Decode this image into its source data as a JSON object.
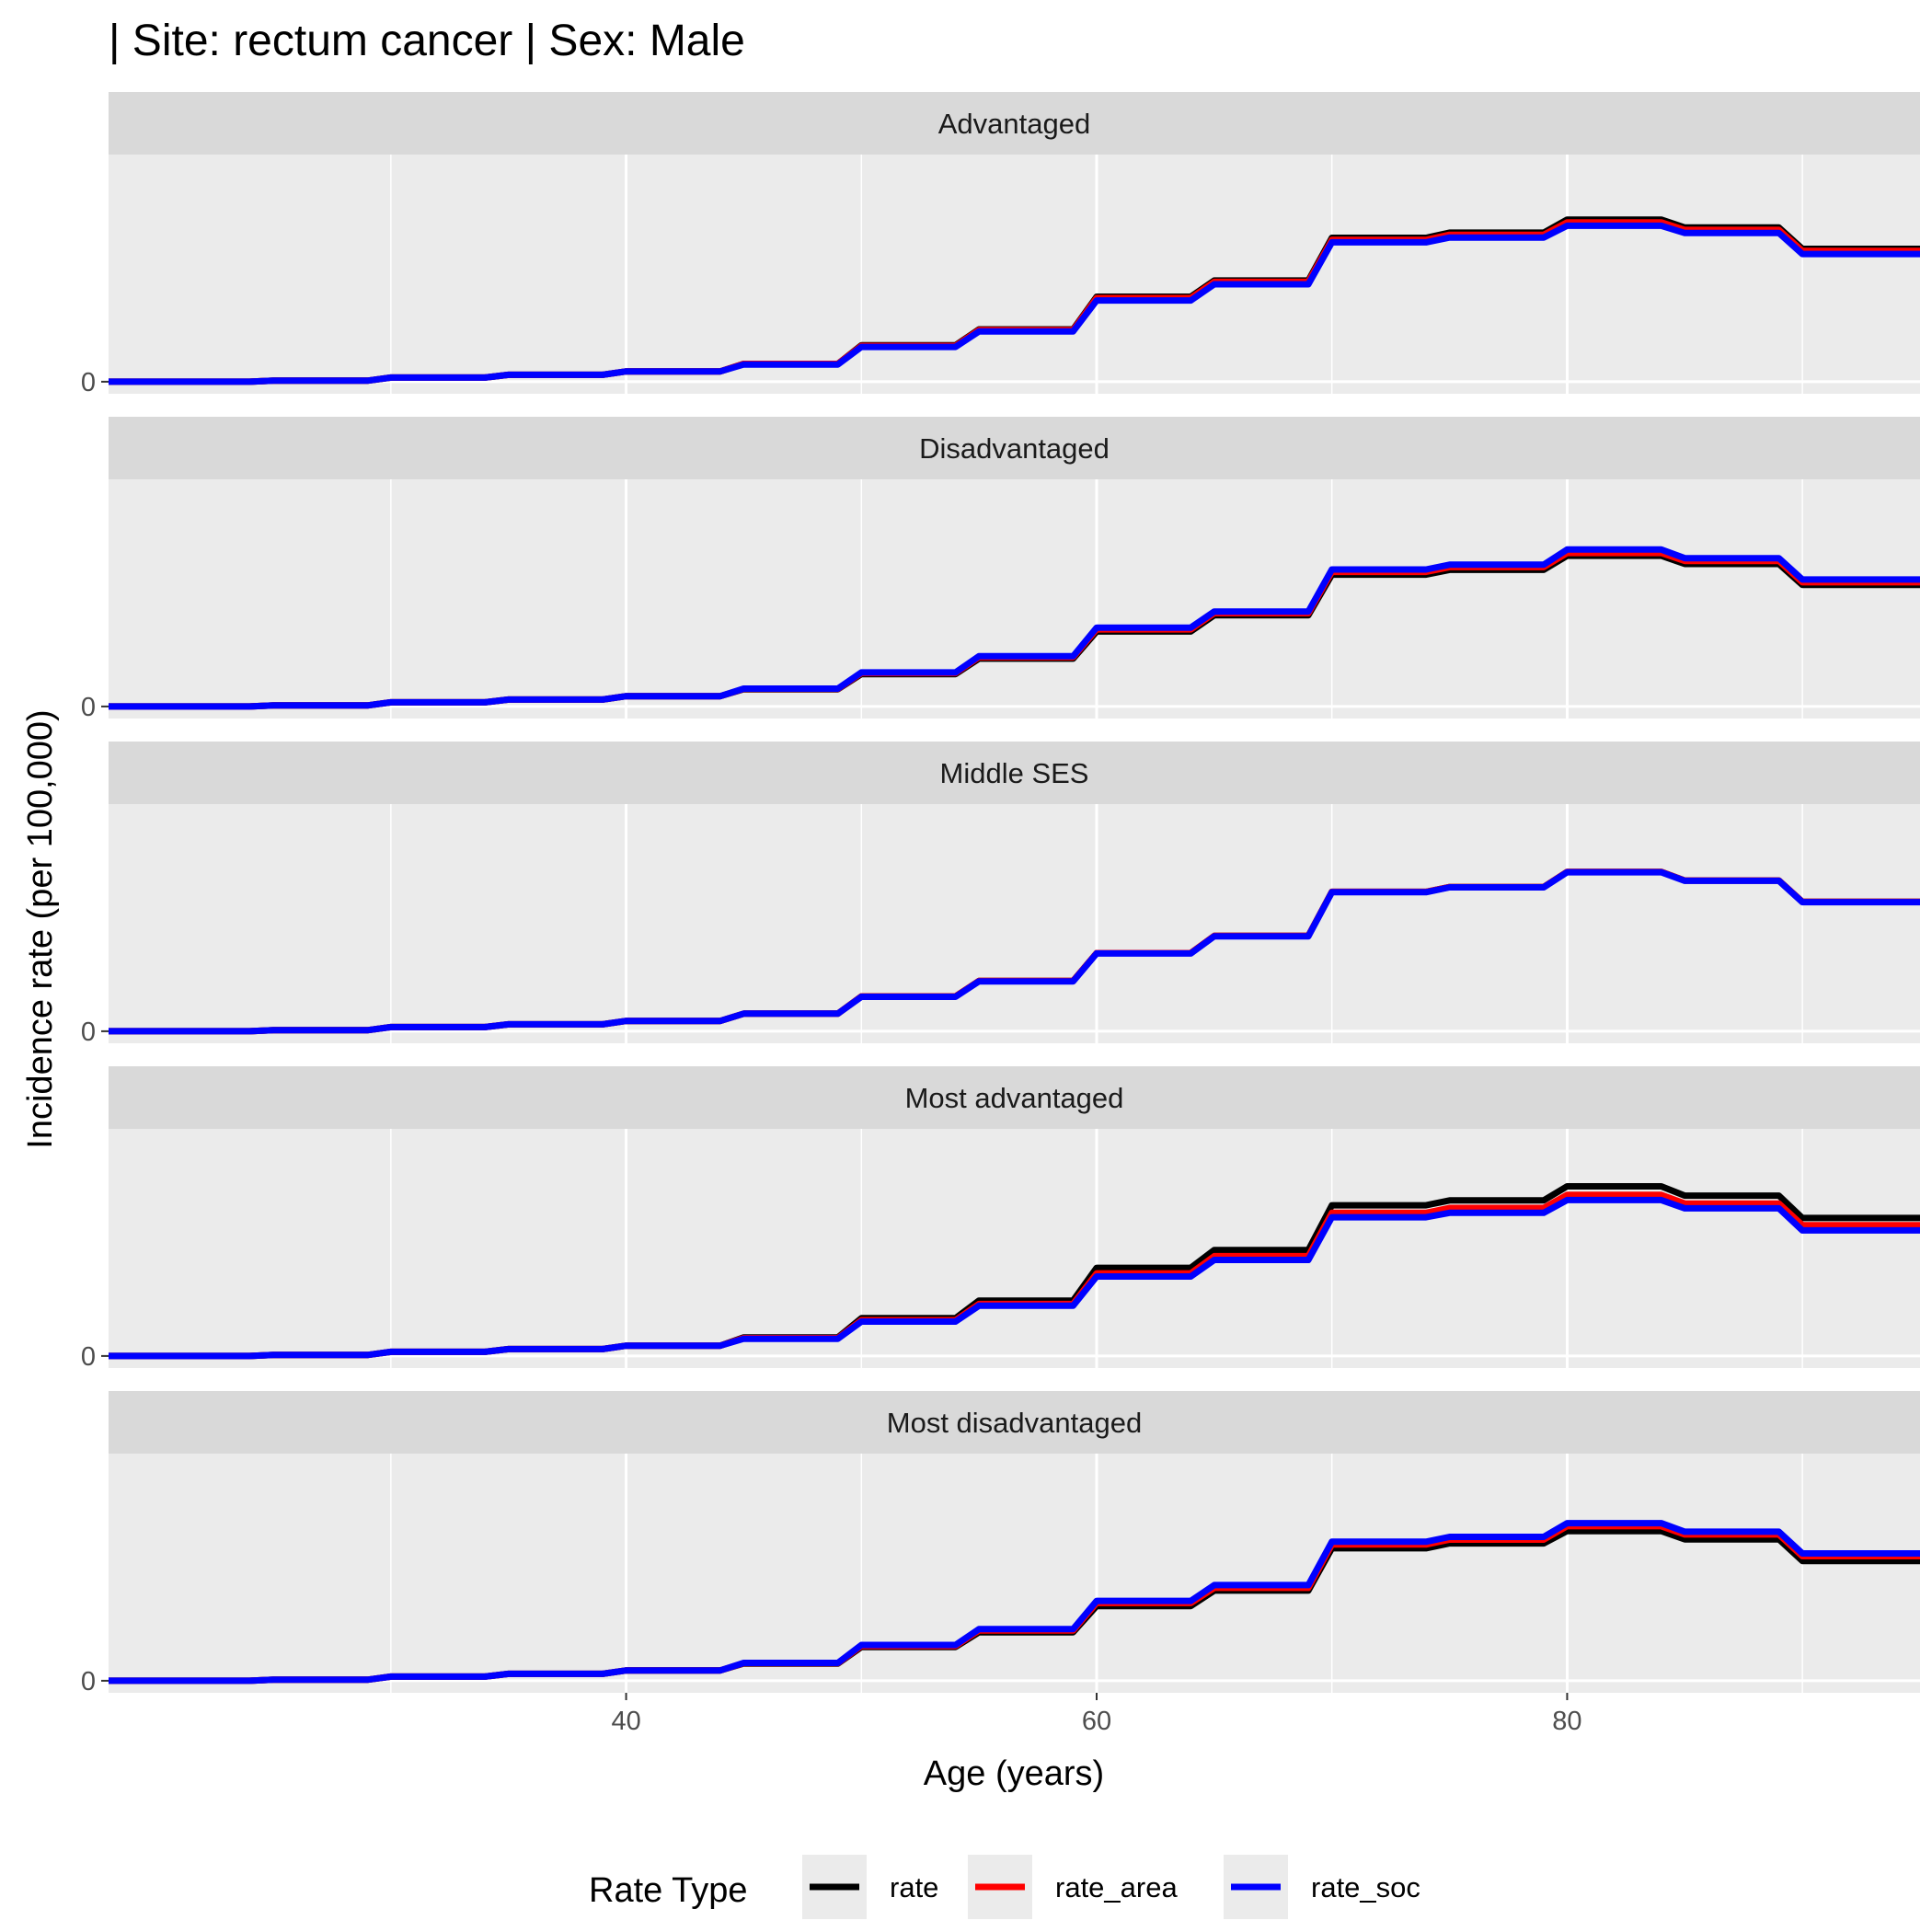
{
  "title": "| Site: rectum cancer | Sex: Male",
  "chart_data": {
    "type": "line",
    "xlabel": "Age (years)",
    "ylabel": "Incidence rate (per 100,000)",
    "xlim": [
      18,
      95
    ],
    "x_ticks": [
      40,
      60,
      80
    ],
    "x_tick_labels": [
      "40",
      "60",
      "80"
    ],
    "y_ticks": [
      0
    ],
    "y_tick_labels": [
      "0"
    ],
    "ylim": [
      -3.5,
      66
    ],
    "grid": true,
    "legend": {
      "title": "Rate Type",
      "position": "bottom",
      "entries": [
        "rate",
        "rate_area",
        "rate_soc"
      ]
    },
    "colors": {
      "rate": "#000000",
      "rate_area": "#ff0000",
      "rate_soc": "#0000ff"
    },
    "x": [
      18,
      20,
      25,
      30,
      35,
      40,
      45,
      50,
      55,
      60,
      65,
      70,
      75,
      80,
      85,
      90,
      95
    ],
    "panels": [
      {
        "name": "Advantaged",
        "series": [
          {
            "name": "rate",
            "values": [
              0,
              0,
              0.3,
              1.2,
              2,
              3,
              5.2,
              10.6,
              15.2,
              24.7,
              29.4,
              41.8,
              43.3,
              47.1,
              44.8,
              38.6,
              38.6
            ]
          },
          {
            "name": "rate_area",
            "values": [
              0,
              0,
              0.3,
              1.2,
              2,
              3,
              5.2,
              10.4,
              15,
              24.3,
              29,
              41.2,
              42.7,
              46.3,
              44.1,
              38,
              38
            ]
          },
          {
            "name": "rate_soc",
            "values": [
              0,
              0,
              0.3,
              1.2,
              2,
              3,
              5.0,
              10.1,
              14.6,
              23.6,
              28.3,
              40.5,
              41.9,
              45.3,
              43.2,
              37.1,
              37.1
            ]
          }
        ]
      },
      {
        "name": "Disadvantaged",
        "series": [
          {
            "name": "rate",
            "values": [
              0,
              0,
              0.3,
              1.2,
              2,
              3,
              5.0,
              9.4,
              13.9,
              21.8,
              26.5,
              38.3,
              39.7,
              43.8,
              41.4,
              35.3,
              35.3
            ]
          },
          {
            "name": "rate_area",
            "values": [
              0,
              0,
              0.3,
              1.2,
              2,
              3,
              5.1,
              9.7,
              14.3,
              22.4,
              27.1,
              39.1,
              40.5,
              44.6,
              42.3,
              36.1,
              36.1
            ]
          },
          {
            "name": "rate_soc",
            "values": [
              0,
              0,
              0.3,
              1.2,
              2,
              3,
              5.2,
              9.9,
              14.6,
              22.9,
              27.6,
              39.8,
              41.2,
              45.6,
              43.1,
              36.9,
              36.9
            ]
          }
        ]
      },
      {
        "name": "Middle SES",
        "series": [
          {
            "name": "rate",
            "values": [
              0,
              0,
              0.3,
              1.2,
              2,
              3,
              5.1,
              10.1,
              14.6,
              22.7,
              27.7,
              40.5,
              41.9,
              46.3,
              43.8,
              37.6,
              37.6
            ]
          },
          {
            "name": "rate_area",
            "values": [
              0,
              0,
              0.3,
              1.2,
              2,
              3,
              5.1,
              10.1,
              14.6,
              22.7,
              27.7,
              40.5,
              41.9,
              46.3,
              43.8,
              37.6,
              37.6
            ]
          },
          {
            "name": "rate_soc",
            "values": [
              0,
              0,
              0.3,
              1.2,
              2,
              3,
              5.1,
              10.0,
              14.5,
              22.6,
              27.6,
              40.4,
              41.8,
              46.2,
              43.7,
              37.5,
              37.5
            ]
          }
        ]
      },
      {
        "name": "Most advantaged",
        "series": [
          {
            "name": "rate",
            "values": [
              0,
              0,
              0.3,
              1.2,
              2,
              3,
              5.4,
              11.0,
              16.1,
              25.6,
              30.8,
              43.8,
              45.2,
              49.3,
              46.6,
              40.1,
              40.1
            ]
          },
          {
            "name": "rate_area",
            "values": [
              0,
              0,
              0.3,
              1.2,
              2,
              3,
              5.2,
              10.4,
              15.1,
              24.0,
              29.0,
              41.6,
              43.0,
              46.8,
              44.3,
              38.0,
              38.0
            ]
          },
          {
            "name": "rate_soc",
            "values": [
              0,
              0,
              0.3,
              1.2,
              2,
              3,
              5.0,
              10.0,
              14.6,
              23.1,
              27.9,
              40.3,
              41.6,
              45.3,
              42.9,
              36.5,
              36.5
            ]
          }
        ]
      },
      {
        "name": "Most disadvantaged",
        "series": [
          {
            "name": "rate",
            "values": [
              0,
              0,
              0.3,
              1.2,
              2,
              3,
              5.0,
              9.8,
              14.1,
              21.7,
              26.2,
              38.5,
              39.9,
              43.5,
              41.1,
              34.8,
              34.8
            ]
          },
          {
            "name": "rate_area",
            "values": [
              0,
              0,
              0.3,
              1.2,
              2,
              3,
              5.1,
              10.1,
              14.6,
              22.6,
              27.0,
              39.6,
              41.0,
              44.9,
              42.5,
              36.2,
              36.2
            ]
          },
          {
            "name": "rate_soc",
            "values": [
              0,
              0,
              0.3,
              1.2,
              2,
              3,
              5.2,
              10.4,
              15.0,
              23.2,
              27.8,
              40.4,
              41.8,
              45.8,
              43.3,
              37.0,
              37.0
            ]
          }
        ]
      }
    ]
  }
}
